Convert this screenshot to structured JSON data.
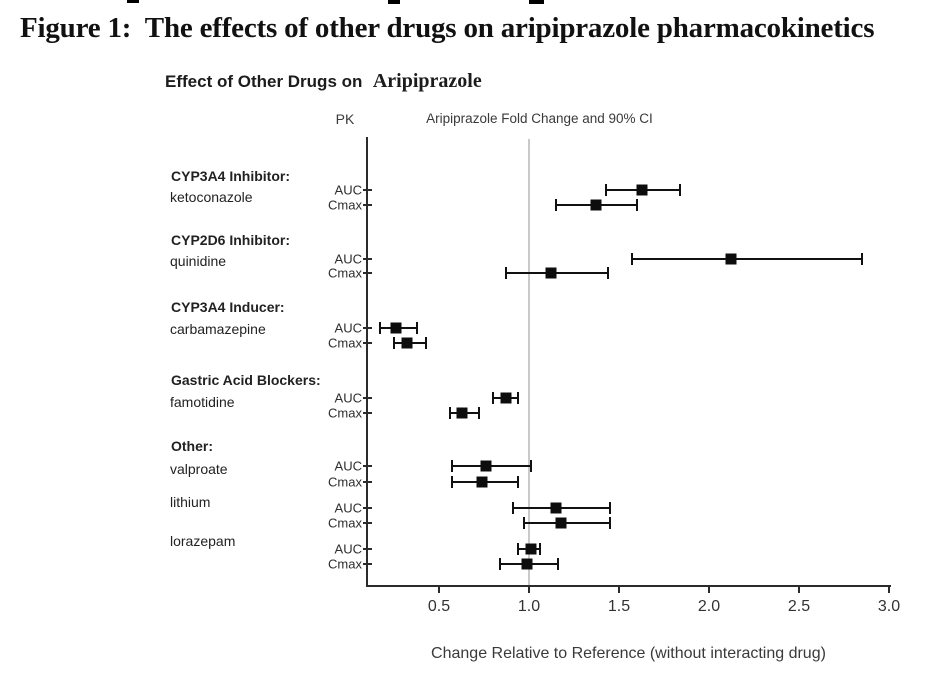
{
  "figure": {
    "title": "Figure 1:  The effects of other drugs on aripiprazole pharmacokinetics",
    "subtitle_plain": "Effect of Other Drugs on",
    "subtitle_serif": "Aripiprazole"
  },
  "chart_data": {
    "type": "scatter",
    "subtype": "forest-plot",
    "title": "Effect of Other Drugs on Aripiprazole",
    "column_headers": {
      "pk": "PK",
      "estimate": "Aripiprazole Fold Change and 90% CI"
    },
    "xlabel": "Change Relative to Reference (without interacting drug)",
    "x_ticks": [
      0.5,
      1.0,
      1.5,
      2.0,
      2.5,
      3.0
    ],
    "xlim": [
      0.5,
      3.0
    ],
    "reference_line": 1.0,
    "legend": "none",
    "grid": "off",
    "groups": [
      {
        "header": "CYP3A4 Inhibitor:",
        "drug": "ketoconazole",
        "rows": [
          {
            "pk": "AUC",
            "est": 1.63,
            "lo": 1.43,
            "hi": 1.84
          },
          {
            "pk": "Cmax",
            "est": 1.37,
            "lo": 1.15,
            "hi": 1.6
          }
        ]
      },
      {
        "header": "CYP2D6 Inhibitor:",
        "drug": "quinidine",
        "rows": [
          {
            "pk": "AUC",
            "est": 2.12,
            "lo": 1.57,
            "hi": 2.85
          },
          {
            "pk": "Cmax",
            "est": 1.12,
            "lo": 0.87,
            "hi": 1.44
          }
        ]
      },
      {
        "header": "CYP3A4 Inducer:",
        "drug": "carbamazepine",
        "rows": [
          {
            "pk": "AUC",
            "est": 0.26,
            "lo": 0.17,
            "hi": 0.38
          },
          {
            "pk": "Cmax",
            "est": 0.32,
            "lo": 0.25,
            "hi": 0.43
          }
        ]
      },
      {
        "header": "Gastric Acid Blockers:",
        "drug": "famotidine",
        "rows": [
          {
            "pk": "AUC",
            "est": 0.87,
            "lo": 0.8,
            "hi": 0.94
          },
          {
            "pk": "Cmax",
            "est": 0.63,
            "lo": 0.56,
            "hi": 0.72
          }
        ]
      },
      {
        "header": "Other:",
        "drug": "valproate",
        "rows": [
          {
            "pk": "AUC",
            "est": 0.76,
            "lo": 0.57,
            "hi": 1.01
          },
          {
            "pk": "Cmax",
            "est": 0.74,
            "lo": 0.57,
            "hi": 0.94
          }
        ]
      },
      {
        "header": null,
        "drug": "lithium",
        "rows": [
          {
            "pk": "AUC",
            "est": 1.15,
            "lo": 0.91,
            "hi": 1.45
          },
          {
            "pk": "Cmax",
            "est": 1.18,
            "lo": 0.97,
            "hi": 1.45
          }
        ]
      },
      {
        "header": null,
        "drug": "lorazepam",
        "rows": [
          {
            "pk": "AUC",
            "est": 1.01,
            "lo": 0.94,
            "hi": 1.06
          },
          {
            "pk": "Cmax",
            "est": 0.99,
            "lo": 0.84,
            "hi": 1.16
          }
        ]
      }
    ]
  },
  "colors": {
    "marker": "#0d0d0d",
    "axis": "#2b2b2b",
    "reference_line": "#c9c9c9",
    "text": "#222222"
  }
}
